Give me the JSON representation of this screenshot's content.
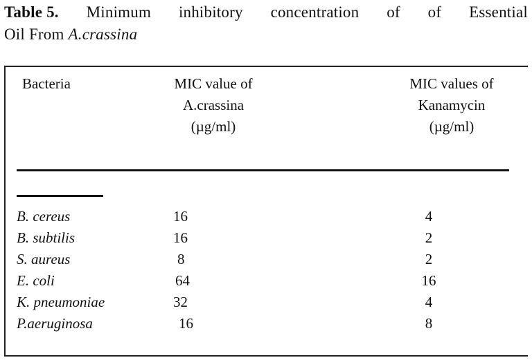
{
  "caption": {
    "label": "Table 5.",
    "line1_words": [
      "Minimum",
      "inhibitory",
      "concentration",
      "of",
      "of",
      "Essential"
    ],
    "line2_text": "Oil From ",
    "line2_species": "A.crassina"
  },
  "table": {
    "headers": {
      "bacteria": "Bacteria",
      "mic_a": [
        "MIC value of",
        "A.crassina",
        "(µg/ml)"
      ],
      "mic_k": [
        "MIC values of",
        "Kanamycin",
        "(µg/ml)"
      ]
    },
    "rows": [
      {
        "bacteria": "B. cereus",
        "mic_a": "16",
        "mic_k": "4"
      },
      {
        "bacteria": "B. subtilis",
        "mic_a": "16",
        "mic_k": "2"
      },
      {
        "bacteria": "S. aureus",
        "mic_a": "8",
        "mic_k": "2"
      },
      {
        "bacteria": "E. coli",
        "mic_a": "64",
        "mic_k": "16"
      },
      {
        "bacteria": "K. pneumoniae",
        "mic_a": "32",
        "mic_k": "4"
      },
      {
        "bacteria": "P.aeruginosa",
        "mic_a": "16",
        "mic_k": "8"
      }
    ]
  }
}
